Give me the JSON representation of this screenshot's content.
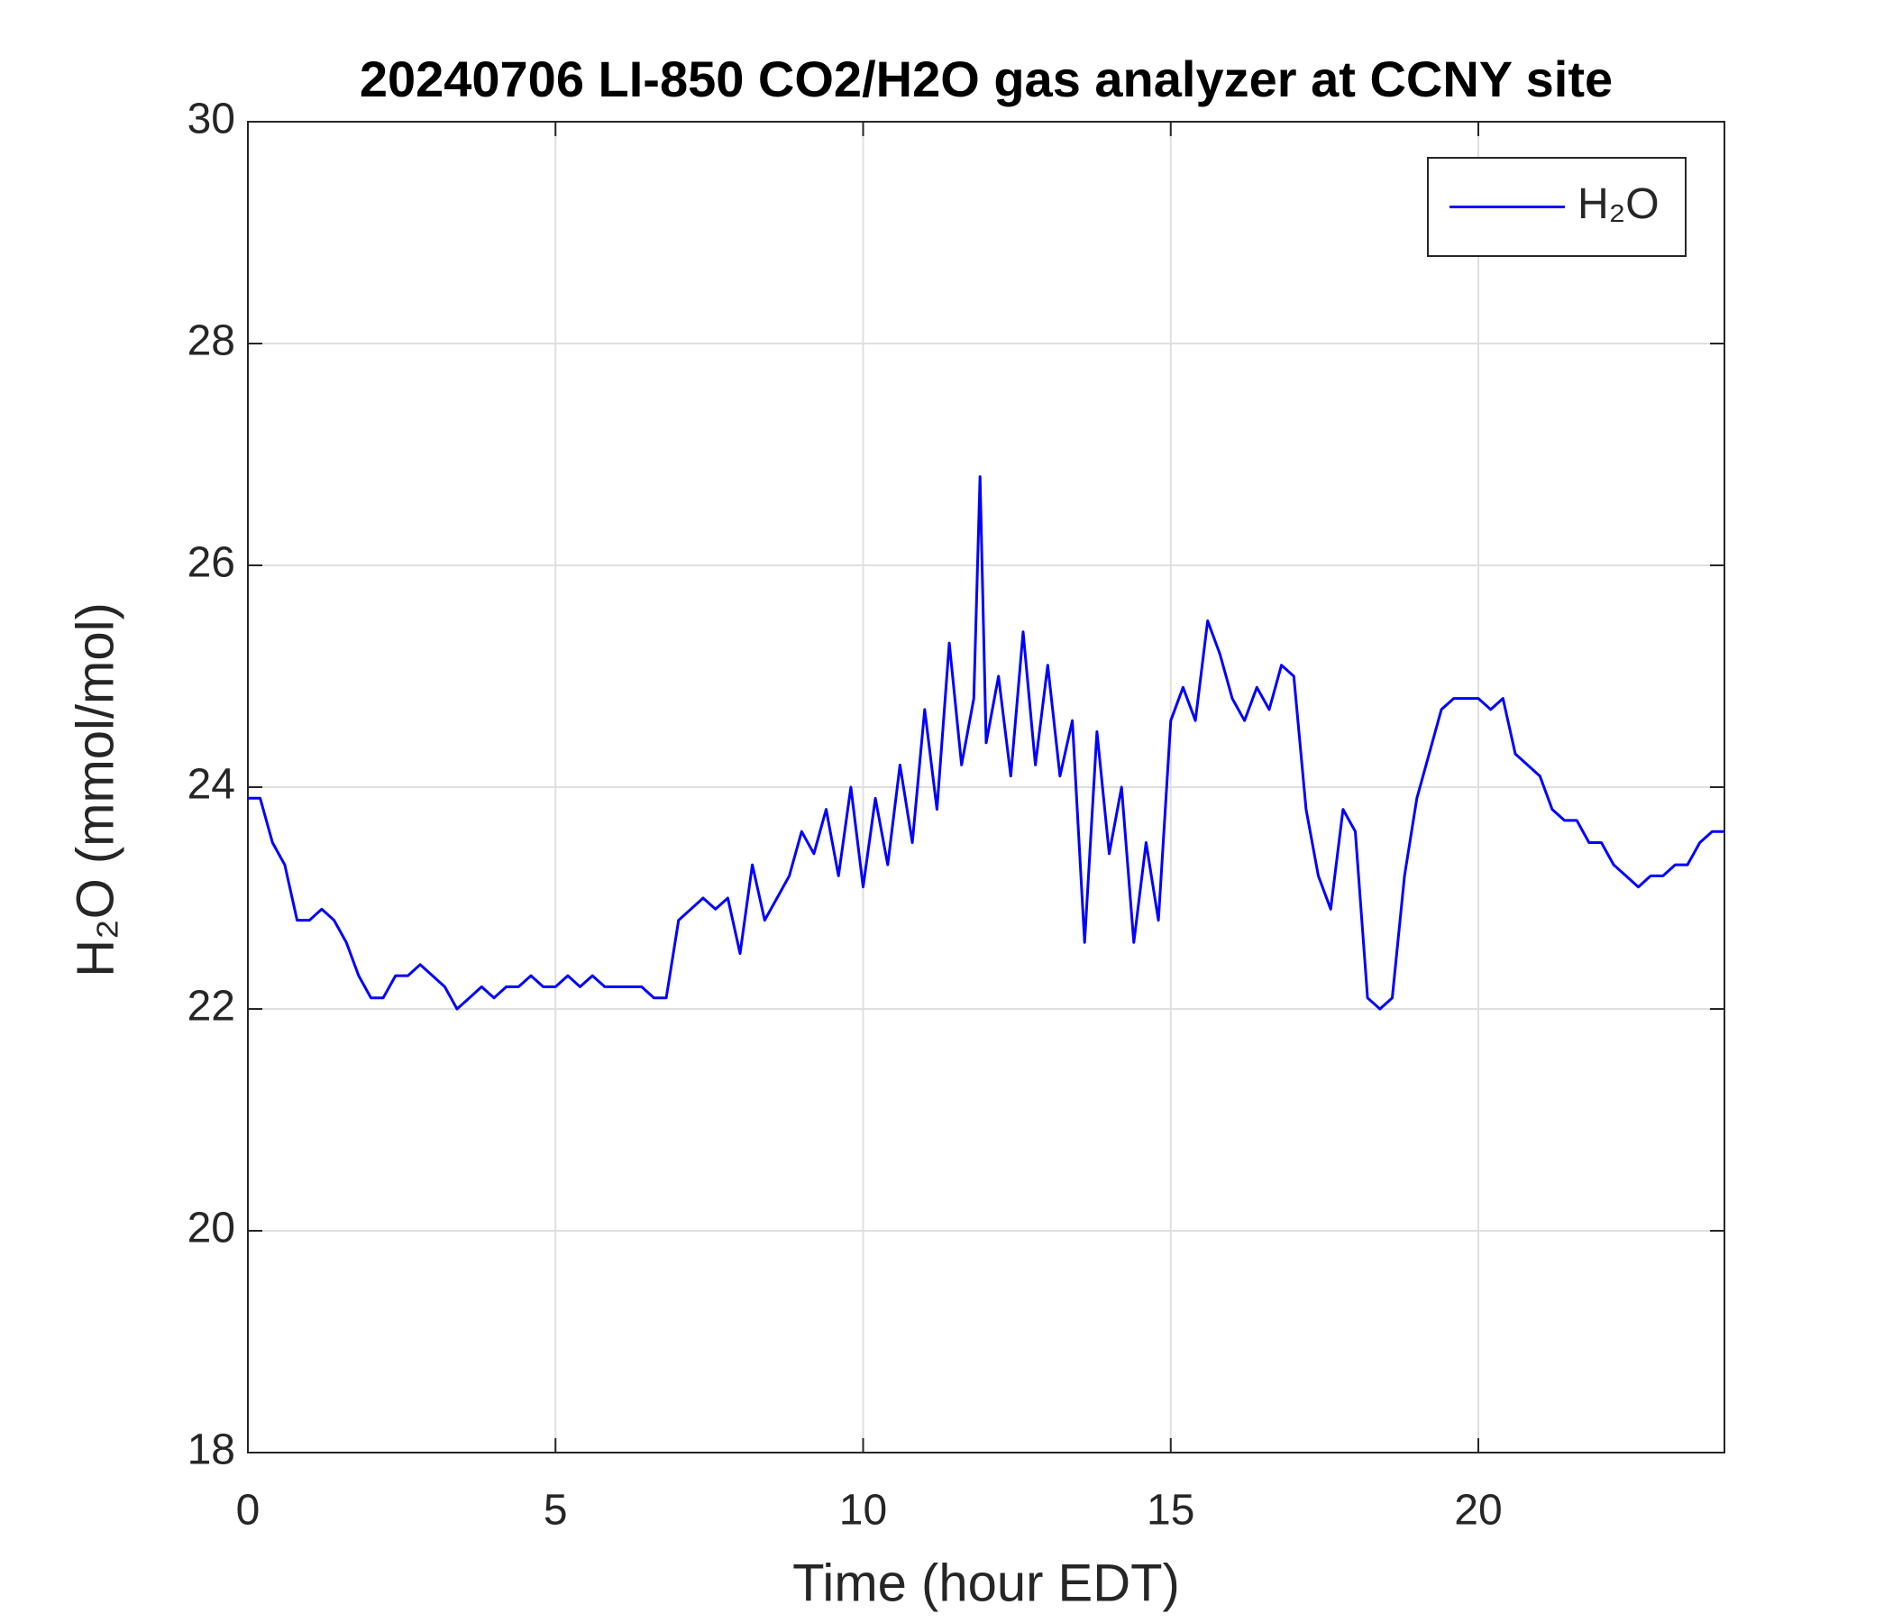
{
  "chart_data": {
    "type": "line",
    "title": "20240706 LI-850 CO2/H2O gas analyzer at CCNY site",
    "x_label": "Time (hour EDT)",
    "y_label": "H₂O (mmol/mol)",
    "xlim": [
      0,
      24
    ],
    "xticks": [
      0,
      5,
      10,
      15,
      20
    ],
    "ylim": [
      18,
      30
    ],
    "yticks": [
      18,
      20,
      22,
      24,
      26,
      28,
      30
    ],
    "grid": true,
    "legend": "northeast",
    "x": [
      0,
      0.2,
      0.4,
      0.6,
      0.8,
      1.0,
      1.2,
      1.4,
      1.6,
      1.8,
      2.0,
      2.2,
      2.4,
      2.6,
      2.8,
      3.0,
      3.2,
      3.4,
      3.6,
      3.8,
      4.0,
      4.2,
      4.4,
      4.6,
      4.8,
      5.0,
      5.2,
      5.4,
      5.6,
      5.8,
      6.0,
      6.2,
      6.4,
      6.6,
      6.8,
      7.0,
      7.2,
      7.4,
      7.6,
      7.8,
      8.0,
      8.2,
      8.4,
      8.6,
      8.8,
      9.0,
      9.2,
      9.4,
      9.6,
      9.8,
      10.0,
      10.2,
      10.4,
      10.6,
      10.8,
      11.0,
      11.2,
      11.4,
      11.6,
      11.8,
      11.9,
      12.0,
      12.2,
      12.4,
      12.6,
      12.8,
      13.0,
      13.2,
      13.4,
      13.6,
      13.8,
      14.0,
      14.2,
      14.4,
      14.6,
      14.8,
      15.0,
      15.2,
      15.4,
      15.6,
      15.8,
      16.0,
      16.2,
      16.4,
      16.6,
      16.8,
      17.0,
      17.2,
      17.4,
      17.6,
      17.8,
      18.0,
      18.2,
      18.4,
      18.6,
      18.8,
      19.0,
      19.2,
      19.4,
      19.6,
      19.8,
      20.0,
      20.2,
      20.4,
      20.6,
      20.8,
      21.0,
      21.2,
      21.4,
      21.6,
      21.8,
      22.0,
      22.2,
      22.4,
      22.6,
      22.8,
      23.0,
      23.2,
      23.4,
      23.6,
      23.8,
      24.0
    ],
    "series": [
      {
        "name": "H₂O",
        "color": "#0000ff",
        "values": [
          23.9,
          23.9,
          23.5,
          23.3,
          22.8,
          22.8,
          22.9,
          22.8,
          22.6,
          22.3,
          22.1,
          22.1,
          22.3,
          22.3,
          22.4,
          22.3,
          22.2,
          22.0,
          22.1,
          22.2,
          22.1,
          22.2,
          22.2,
          22.3,
          22.2,
          22.2,
          22.3,
          22.2,
          22.3,
          22.2,
          22.2,
          22.2,
          22.2,
          22.1,
          22.1,
          22.8,
          22.9,
          23.0,
          22.9,
          23.0,
          22.5,
          23.3,
          22.8,
          23.0,
          23.2,
          23.6,
          23.4,
          23.8,
          23.2,
          24.0,
          23.1,
          23.9,
          23.3,
          24.2,
          23.5,
          24.7,
          23.8,
          25.3,
          24.2,
          24.8,
          26.8,
          24.4,
          25.0,
          24.1,
          25.4,
          24.2,
          25.1,
          24.1,
          24.6,
          22.6,
          24.5,
          23.4,
          24.0,
          22.6,
          23.5,
          22.8,
          24.6,
          24.9,
          24.6,
          25.5,
          25.2,
          24.8,
          24.6,
          24.9,
          24.7,
          25.1,
          25.0,
          23.8,
          23.2,
          22.9,
          23.8,
          23.6,
          22.1,
          22.0,
          22.1,
          23.2,
          23.9,
          24.3,
          24.7,
          24.8,
          24.8,
          24.8,
          24.7,
          24.8,
          24.3,
          24.2,
          24.1,
          23.8,
          23.7,
          23.7,
          23.5,
          23.5,
          23.3,
          23.2,
          23.1,
          23.2,
          23.2,
          23.3,
          23.3,
          23.5,
          23.6,
          23.6
        ]
      }
    ]
  }
}
